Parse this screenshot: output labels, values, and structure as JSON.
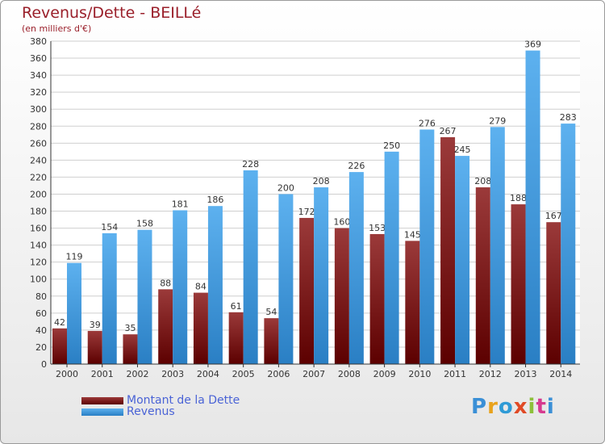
{
  "title": "Revenus/Dette - BEILLé",
  "subtitle": "(en milliers d'€)",
  "brand": "Proxiti",
  "colors": {
    "debt_dark": "#5c0000",
    "debt_light": "#9b3a3a",
    "revenue_dark": "#2a7fc4",
    "revenue_light": "#5db1ef"
  },
  "chart_data": {
    "type": "bar",
    "title": "Revenus/Dette - BEILLé",
    "subtitle": "(en milliers d'€)",
    "categories": [
      "2000",
      "2001",
      "2002",
      "2003",
      "2004",
      "2005",
      "2006",
      "2007",
      "2008",
      "2009",
      "2010",
      "2011",
      "2012",
      "2013",
      "2014"
    ],
    "series": [
      {
        "name": "Montant de la Dette",
        "values": [
          42,
          39,
          35,
          88,
          84,
          61,
          54,
          172,
          160,
          153,
          145,
          267,
          208,
          188,
          167
        ]
      },
      {
        "name": "Revenus",
        "values": [
          119,
          154,
          158,
          181,
          186,
          228,
          200,
          208,
          226,
          250,
          276,
          245,
          279,
          369,
          283
        ]
      }
    ],
    "ylim": [
      0,
      380
    ],
    "yticks": [
      0,
      20,
      40,
      60,
      80,
      100,
      120,
      140,
      160,
      180,
      200,
      220,
      240,
      260,
      280,
      300,
      320,
      340,
      360,
      380
    ],
    "grid": true,
    "legend": "bottom-left"
  }
}
